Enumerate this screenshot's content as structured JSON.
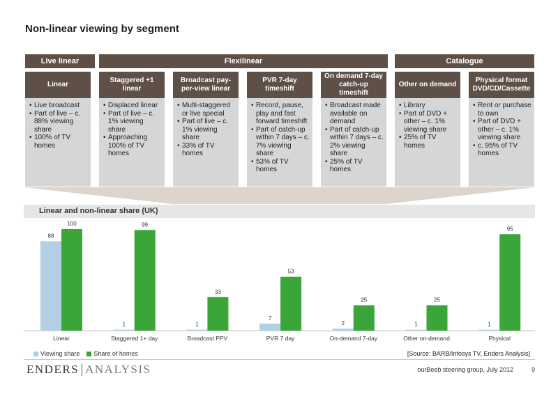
{
  "title": "Non-linear viewing by segment",
  "groups": [
    {
      "label": "Live linear"
    },
    {
      "label": "Flexilinear"
    },
    {
      "label": "Catalogue"
    }
  ],
  "columns": [
    {
      "header": "Linear",
      "bullets": [
        "Live broadcast",
        "Part of live – c. 88% viewing share",
        "100% of TV homes"
      ]
    },
    {
      "header": "Staggered +1 linear",
      "bullets": [
        "Displaced linear",
        "Part of live – c. 1% viewing share",
        "Approaching 100% of TV homes"
      ]
    },
    {
      "header": "Broadcast pay-per-view linear",
      "bullets": [
        "Multi-staggered or live special",
        "Part of live – c. 1% viewing share",
        "33% of TV homes"
      ]
    },
    {
      "header": "PVR 7-day timeshift",
      "bullets": [
        "Record, pause, play and fast forward timeshift",
        "Part of catch-up within 7 days – c. 7% viewing share",
        "53% of TV homes"
      ]
    },
    {
      "header": "On demand 7-day catch-up timeshift",
      "bullets": [
        "Broadcast made available on demand",
        "Part of catch-up within 7 days – c. 2% viewing share",
        "25% of TV homes"
      ]
    },
    {
      "header": "Other on demand",
      "bullets": [
        "Library",
        "Part of DVD + other – c. 1% viewing share",
        "25% of TV homes"
      ]
    },
    {
      "header": "Physical format DVD/CD/Cassette",
      "bullets": [
        "Rent or purchase to own",
        "Part of DVD + other – c. 1% viewing share",
        "c. 95% of TV homes"
      ]
    }
  ],
  "chart_data": {
    "type": "bar",
    "title": "Linear and non-linear share (UK)",
    "categories": [
      "Linear",
      "Staggered 1+ day",
      "Broadcast PPV",
      "PVR 7 day",
      "On-demand 7-day",
      "Other on-demand",
      "Physical"
    ],
    "series": [
      {
        "name": "Viewing share",
        "values": [
          88,
          1,
          1,
          7,
          2,
          1,
          1
        ],
        "color": "#b3cfe3"
      },
      {
        "name": "Share of homes",
        "values": [
          100,
          99,
          33,
          53,
          25,
          25,
          95
        ],
        "color": "#3aa63a"
      }
    ],
    "ylim": [
      0,
      100
    ],
    "grid": false,
    "legend_position": "bottom-left"
  },
  "source": "[Source: BARB/Infosys TV, Enders Analysis]",
  "brand": {
    "part1": "ENDERS",
    "part2": "ANALYSIS"
  },
  "footer_note": "ourBeeb steering group, July 2012",
  "page_number": "9"
}
